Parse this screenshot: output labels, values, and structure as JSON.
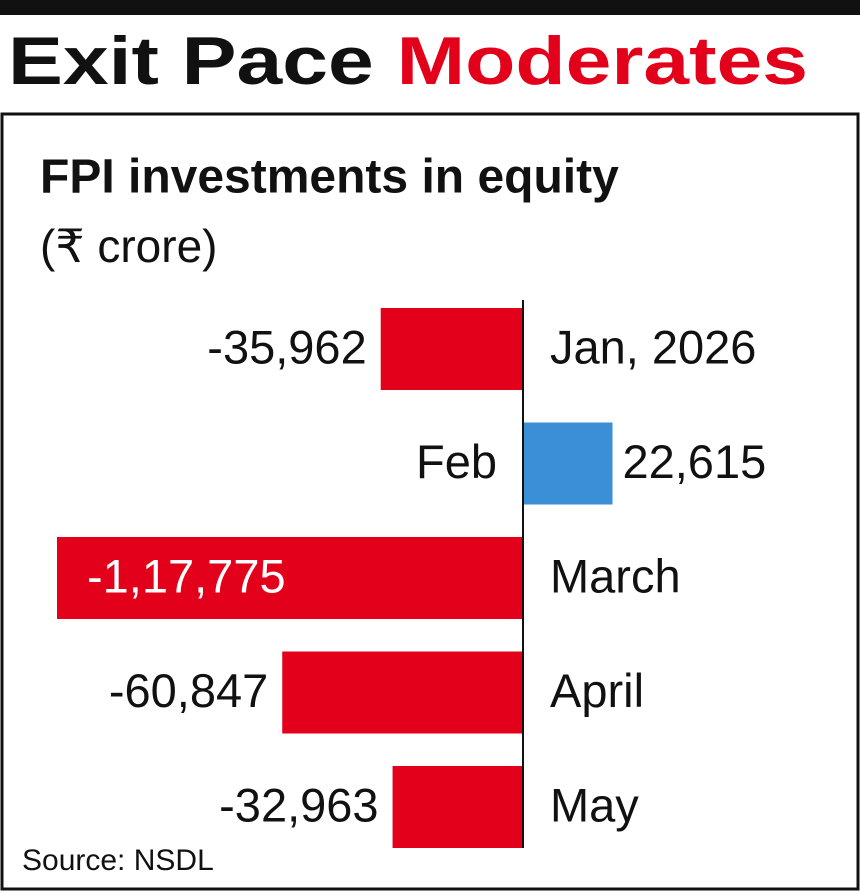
{
  "chart_data": {
    "type": "bar",
    "orientation": "horizontal",
    "title": [
      "Exit Pace",
      "Moderates"
    ],
    "subtitle": "FPI investments in equity",
    "unit": "(₹ crore)",
    "source": "Source: NSDL",
    "categories": [
      "Jan, 2026",
      "Feb",
      "March",
      "April",
      "May"
    ],
    "values": [
      -35962,
      22615,
      -117775,
      -60847,
      -32963
    ],
    "value_labels": [
      "-35,962",
      "22,615",
      "-1,17,775",
      "-60,847",
      "-32,963"
    ],
    "colors": [
      "#e2001a",
      "#3a8fd6",
      "#e2001a",
      "#e2001a",
      "#e2001a"
    ],
    "title_colors": [
      "#111111",
      "#e2001a"
    ]
  }
}
